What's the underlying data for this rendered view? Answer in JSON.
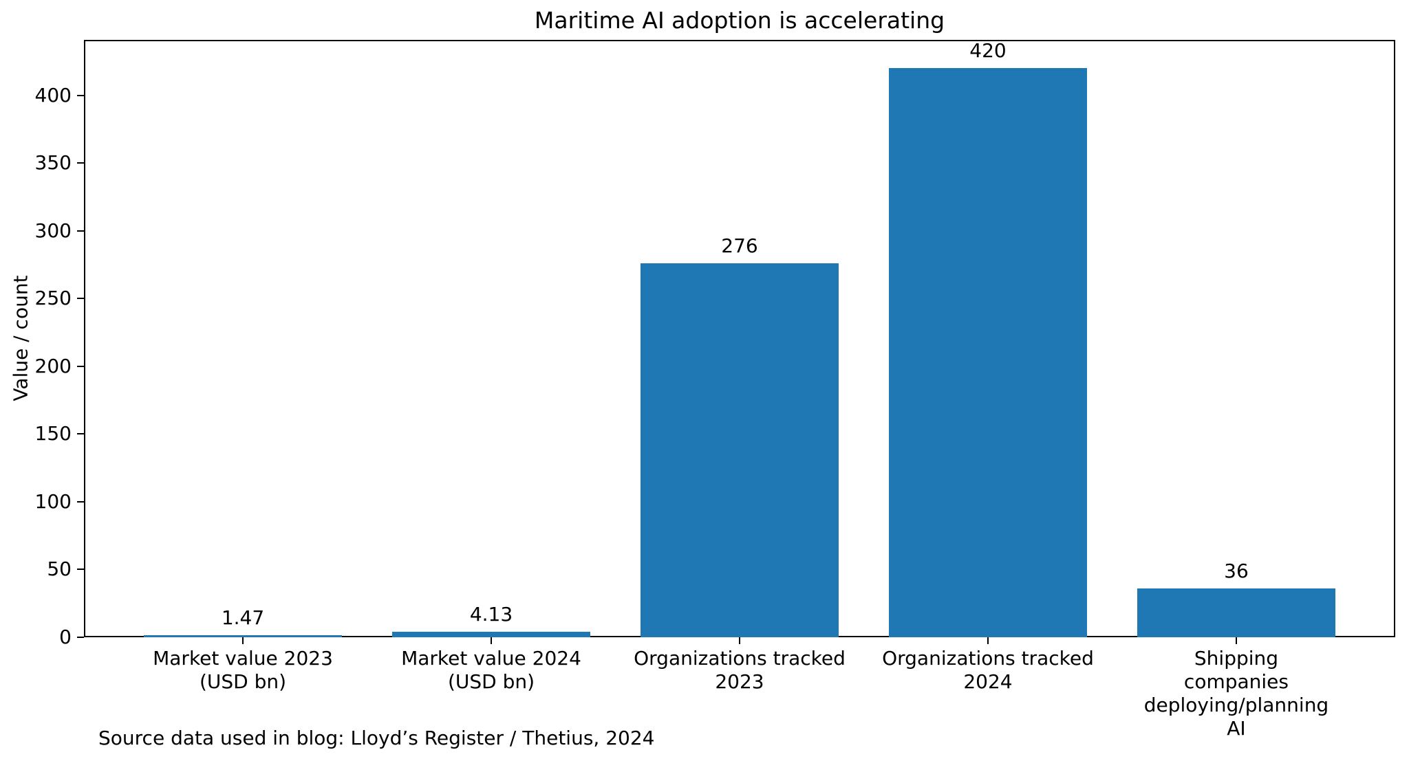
{
  "source_note": "Source data used in blog: Lloyd’s Register / Thetius, 2024",
  "chart_data": {
    "type": "bar",
    "title": "Maritime AI adoption is accelerating",
    "categories": [
      "Market value 2023\n(USD bn)",
      "Market value 2024\n(USD bn)",
      "Organizations tracked\n2023",
      "Organizations tracked\n2024",
      "Shipping companies\ndeploying/planning AI"
    ],
    "values": [
      1.47,
      4.13,
      276,
      420,
      36
    ],
    "value_labels": [
      "1.47",
      "4.13",
      "276",
      "420",
      "36"
    ],
    "xlabel": "",
    "ylabel": "Value / count",
    "ylim": [
      0,
      441
    ],
    "yticks": [
      0,
      50,
      100,
      150,
      200,
      250,
      300,
      350,
      400
    ],
    "bar_color": "#1f77b4",
    "axis_color": "#000000",
    "grid": false,
    "legend": "none",
    "bar_width_fraction": 0.8
  }
}
